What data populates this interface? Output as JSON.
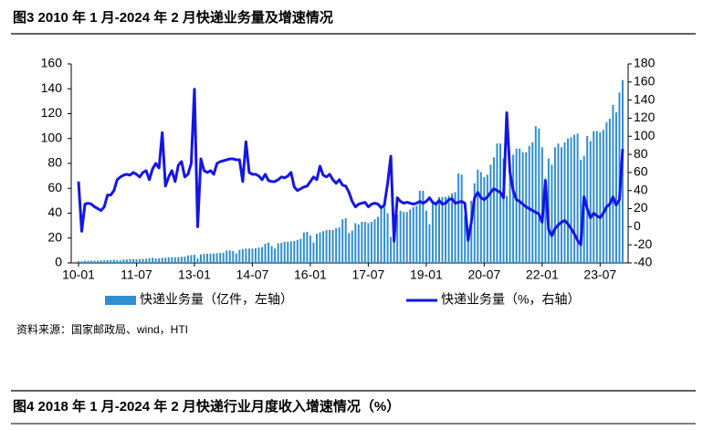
{
  "figure3_title": "图3  2010 年 1 月-2024 年 2 月快递业务量及增速情况",
  "chart_data": {
    "type": "bar-line",
    "categories": [
      "10-01",
      null,
      null,
      null,
      null,
      null,
      null,
      null,
      null,
      null,
      null,
      null,
      null,
      null,
      null,
      null,
      null,
      null,
      "11-07",
      null,
      null,
      null,
      null,
      null,
      null,
      null,
      null,
      null,
      null,
      null,
      null,
      null,
      null,
      null,
      null,
      null,
      "13-01",
      null,
      null,
      null,
      null,
      null,
      null,
      null,
      null,
      null,
      null,
      null,
      null,
      null,
      null,
      null,
      null,
      null,
      "14-07",
      null,
      null,
      null,
      null,
      null,
      null,
      null,
      null,
      null,
      null,
      null,
      null,
      null,
      null,
      null,
      null,
      null,
      "16-01",
      null,
      null,
      null,
      null,
      null,
      null,
      null,
      null,
      null,
      null,
      null,
      null,
      null,
      null,
      null,
      null,
      null,
      "17-07",
      null,
      null,
      null,
      null,
      null,
      null,
      null,
      null,
      null,
      null,
      null,
      null,
      null,
      null,
      null,
      null,
      null,
      "19-01",
      null,
      null,
      null,
      null,
      null,
      null,
      null,
      null,
      null,
      null,
      null,
      null,
      null,
      null,
      null,
      null,
      null,
      "20-07",
      null,
      null,
      null,
      null,
      null,
      null,
      null,
      null,
      null,
      null,
      null,
      null,
      null,
      null,
      null,
      null,
      null,
      "22-01",
      null,
      null,
      null,
      null,
      null,
      null,
      null,
      null,
      null,
      null,
      null,
      null,
      null,
      null,
      null,
      null,
      null,
      "23-07",
      null,
      null,
      null,
      null,
      null,
      null,
      null
    ],
    "series": [
      {
        "name": "快递业务量（亿件，左轴）",
        "color": "#2f8fd0",
        "axis": "y",
        "values": [
          1.5,
          1.3,
          1.8,
          1.8,
          1.9,
          1.9,
          1.9,
          2.0,
          2.1,
          2.2,
          2.3,
          2.6,
          2.3,
          2.0,
          2.8,
          2.8,
          3.0,
          3.0,
          3.0,
          3.1,
          3.3,
          3.3,
          3.8,
          4.1,
          3.5,
          3.6,
          4.1,
          4.3,
          4.6,
          4.5,
          4.5,
          4.7,
          5.0,
          5.0,
          6.0,
          6.3,
          6.5,
          3.7,
          6.9,
          7.2,
          7.5,
          7.5,
          7.6,
          7.8,
          8.0,
          8.2,
          10.0,
          10.0,
          9.5,
          7.6,
          10.5,
          11.0,
          11.5,
          11.5,
          11.5,
          11.8,
          12.4,
          12.7,
          15.5,
          16.4,
          13.5,
          11.5,
          15.8,
          16.2,
          17.0,
          17.0,
          17.3,
          17.6,
          18.5,
          19.5,
          24.5,
          25.0,
          22.0,
          16.5,
          23.5,
          24.5,
          25.5,
          26.5,
          26.5,
          26.5,
          28.0,
          28.5,
          35.0,
          36.0,
          24,
          26,
          32,
          31,
          33,
          33,
          32,
          33,
          35,
          37,
          45,
          45,
          40,
          21,
          39,
          39,
          42,
          41,
          41,
          43,
          45,
          46,
          58,
          58,
          42,
          31,
          50,
          49,
          53,
          53,
          53,
          54,
          56,
          57,
          72,
          71,
          38,
          24,
          50,
          64,
          75,
          73,
          69,
          71,
          79,
          85,
          96,
          96,
          84,
          54,
          81,
          87,
          92,
          92,
          89,
          89,
          94,
          97,
          110,
          108,
          93,
          68,
          84,
          79,
          93,
          96,
          93,
          97,
          100,
          101,
          103,
          104,
          83,
          86,
          102,
          98,
          106,
          106,
          105,
          107,
          113,
          116,
          127,
          121,
          137,
          147
        ]
      },
      {
        "name": "快递业务量（%，右轴）",
        "color": "#1515e6",
        "axis": "y2",
        "values": [
          50,
          -5,
          25,
          26,
          25,
          22,
          20,
          18,
          22,
          35,
          35,
          40,
          52,
          55,
          57,
          58,
          57,
          60,
          58,
          55,
          60,
          62,
          52,
          64,
          70,
          65,
          104,
          45,
          55,
          62,
          50,
          68,
          72,
          55,
          58,
          70,
          152,
          0,
          75,
          62,
          60,
          62,
          58,
          70,
          72,
          73,
          74,
          75,
          75,
          74,
          74,
          50,
          94,
          60,
          58,
          58,
          56,
          52,
          58,
          51,
          50,
          50,
          52,
          55,
          54,
          56,
          60,
          44,
          40,
          42,
          44,
          45,
          50,
          55,
          52,
          67,
          57,
          55,
          58,
          52,
          48,
          52,
          46,
          45,
          38,
          28,
          22,
          25,
          26,
          27,
          22,
          25,
          26,
          25,
          21,
          24,
          48,
          78,
          -16,
          32,
          28,
          26,
          27,
          26,
          25,
          26,
          28,
          26,
          28,
          32,
          27,
          25,
          29,
          25,
          26,
          30,
          31,
          26,
          27,
          28,
          26,
          -15,
          5,
          32,
          38,
          32,
          30,
          33,
          38,
          42,
          40,
          38,
          32,
          126,
          60,
          40,
          30,
          28,
          25,
          22,
          20,
          18,
          16,
          14,
          5,
          51,
          -3,
          -10,
          -2,
          2,
          5,
          7,
          3,
          -2,
          -8,
          -15,
          -20,
          33,
          20,
          10,
          15,
          12,
          10,
          15,
          22,
          25,
          33,
          24,
          30,
          86
        ]
      }
    ],
    "ylim": [
      0,
      160
    ],
    "yticks": [
      0,
      20,
      40,
      60,
      80,
      100,
      120,
      140,
      160
    ],
    "y2lim": [
      -40,
      180
    ],
    "y2ticks": [
      -40,
      -20,
      0,
      20,
      40,
      60,
      80,
      100,
      120,
      140,
      160,
      180
    ],
    "grid": false,
    "legend": "bottom"
  },
  "source": "资料来源：国家邮政局、wind，HTI",
  "figure4_title": "图4  2018 年 1 月-2024 年 2 月快递行业月度收入增速情况（%）"
}
